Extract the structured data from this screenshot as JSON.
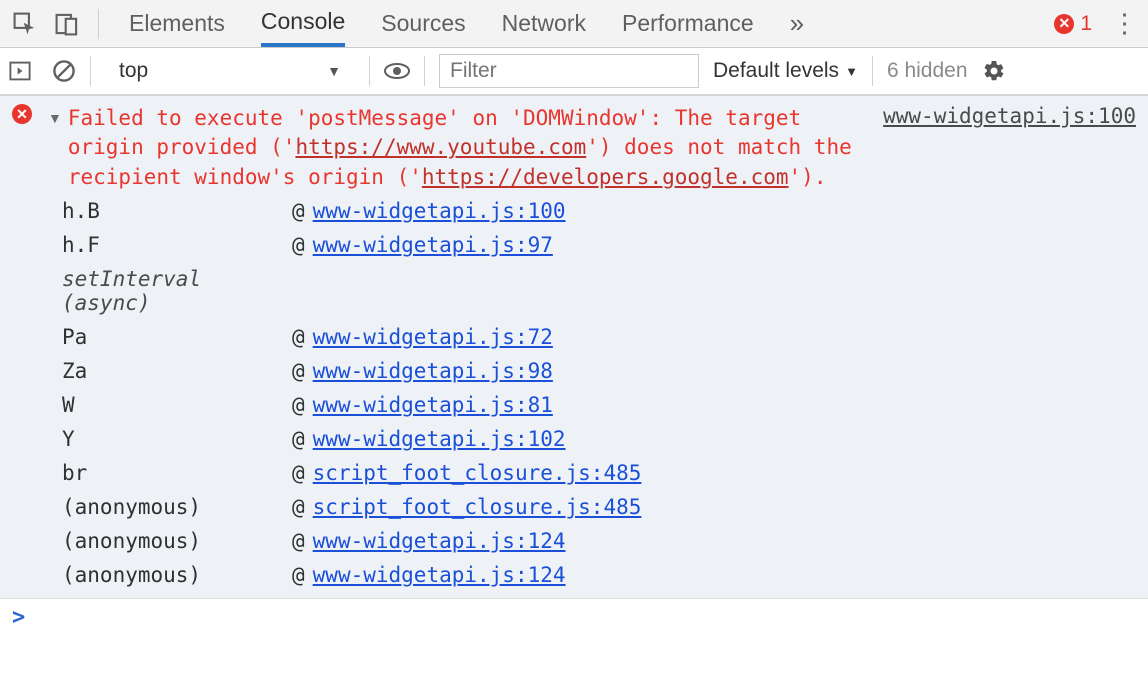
{
  "tabstrip": {
    "tabs": [
      "Elements",
      "Console",
      "Sources",
      "Network",
      "Performance"
    ],
    "active_index": 1,
    "overflow_glyph": "»",
    "error_count": "1"
  },
  "toolbar": {
    "context_label": "top",
    "filter_placeholder": "Filter",
    "levels_label": "Default levels",
    "hidden_label": "6 hidden"
  },
  "error": {
    "source_link": "www-widgetapi.js:100",
    "pre": "Failed to execute 'postMessage' on 'DOMWindow': The target origin provided ('",
    "url1": "https://www.youtube.com",
    "mid": "') does not match the recipient window's origin ('",
    "url2": "https://developers.google.com",
    "post": "')."
  },
  "stack": [
    {
      "fn": "h.B",
      "loc": "www-widgetapi.js:100",
      "type": "frame"
    },
    {
      "fn": "h.F",
      "loc": "www-widgetapi.js:97",
      "type": "frame"
    },
    {
      "fn": "setInterval (async)",
      "loc": "",
      "type": "group"
    },
    {
      "fn": "Pa",
      "loc": "www-widgetapi.js:72",
      "type": "frame"
    },
    {
      "fn": "Za",
      "loc": "www-widgetapi.js:98",
      "type": "frame"
    },
    {
      "fn": "W",
      "loc": "www-widgetapi.js:81",
      "type": "frame"
    },
    {
      "fn": "Y",
      "loc": "www-widgetapi.js:102",
      "type": "frame"
    },
    {
      "fn": "br",
      "loc": "script_foot_closure.js:485",
      "type": "frame"
    },
    {
      "fn": "(anonymous)",
      "loc": "script_foot_closure.js:485",
      "type": "frame"
    },
    {
      "fn": "(anonymous)",
      "loc": "www-widgetapi.js:124",
      "type": "frame"
    },
    {
      "fn": "(anonymous)",
      "loc": "www-widgetapi.js:124",
      "type": "frame"
    }
  ],
  "colors": {
    "error": "#e8362f",
    "link": "#1a4fd8",
    "tab_active_border": "#2b76c9",
    "body_bg": "#eef2f6"
  }
}
